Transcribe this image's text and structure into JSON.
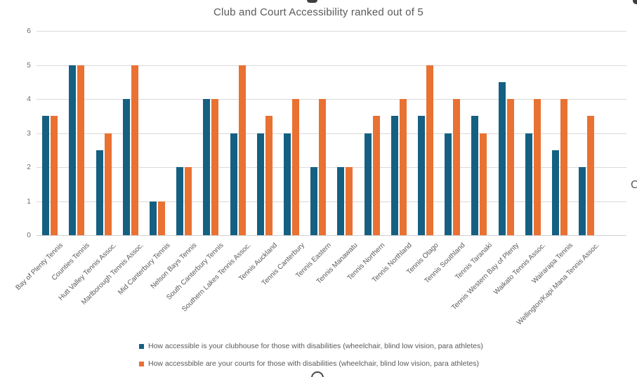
{
  "chart_data": {
    "type": "bar",
    "title": "Club and Court Accessibility ranked out of 5",
    "categories": [
      "Bay of Plenty Tennis",
      "Counties Tennis",
      "Hutt Valley Tennis Assoc.",
      "Marlborough Tennis Assoc.",
      "Mid Canterbury Tennis",
      "Nelson Bays Tennis",
      "South Canterbury Tennis",
      "Southern Lakes Tennis Assoc.",
      "Tennis Auckland",
      "Tennis Canterbury",
      "Tennis Eastern",
      "Tennis Manawatu",
      "Tennis Northern",
      "Tennis Northland",
      "Tennis Otago",
      "Tennis Southland",
      "Tennis Taranaki",
      "Tennis Western Bay of Plenty",
      "Waikato Tennis Assoc.",
      "Wairarapa Tennis",
      "Wellington/Kapi Mana Tennis Assoc."
    ],
    "series": [
      {
        "name": "How accessible is your clubhouse for those with disabilities (wheelchair, blind low vision, para athletes)",
        "color": "#156082",
        "values": [
          3.5,
          5,
          2.5,
          4,
          1,
          2,
          4,
          3,
          3,
          3,
          2,
          2,
          3,
          3.5,
          3.5,
          3,
          3.5,
          4.5,
          3,
          2.5,
          2
        ]
      },
      {
        "name": "How accessbible are your courts for those with disabilities (wheelchair, blind low vision,  para athletes)",
        "color": "#E97132",
        "values": [
          3.5,
          5,
          3,
          5,
          1,
          2,
          4,
          5,
          3.5,
          4,
          4,
          2,
          3.5,
          4,
          5,
          4,
          3,
          4,
          4,
          4,
          3.5
        ]
      }
    ],
    "ylim": [
      0,
      6
    ],
    "yticks": [
      0,
      1,
      2,
      3,
      4,
      5,
      6
    ],
    "xlabel": "",
    "ylabel": "",
    "grid": true,
    "legend_position": "bottom"
  },
  "colors": {
    "series_clubhouse": "#156082",
    "series_courts": "#E97132",
    "gridline": "#d9d9d9",
    "text": "#595959"
  },
  "artifacts": {
    "right_edge_glyph": "C"
  }
}
